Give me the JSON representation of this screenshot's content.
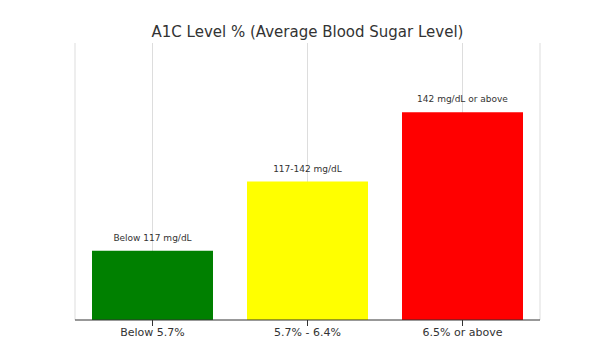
{
  "chart_data": {
    "type": "bar",
    "title": "A1C Level % (Average Blood Sugar Level)",
    "categories": [
      "Below 5.7%",
      "5.7% - 6.4%",
      "6.5% or above"
    ],
    "values": [
      1,
      2,
      3
    ],
    "colors": [
      "#008000",
      "#ffff00",
      "#ff0000"
    ],
    "annotations": [
      "Below 117 mg/dL",
      "117-142 mg/dL",
      "142 mg/dL or above"
    ],
    "ylim": [
      0,
      4
    ],
    "grid": "x",
    "tick_labels": "x"
  }
}
